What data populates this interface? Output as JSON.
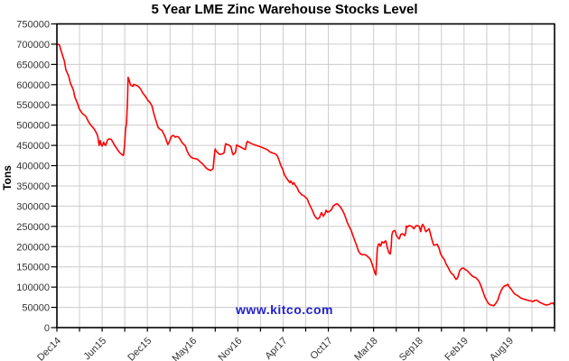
{
  "page": {
    "background": "#ffffff"
  },
  "chart_data": {
    "type": "line",
    "title": "5 Year LME Zinc Warehouse Stocks Level",
    "ylabel": "Tons",
    "watermark": "www.kitco.com",
    "grid": true,
    "legend": false,
    "ylim": [
      0,
      750000
    ],
    "y_tick_step": 50000,
    "y_tick_labels": [
      "750000",
      "700000",
      "650000",
      "600000",
      "550000",
      "500000",
      "450000",
      "400000",
      "350000",
      "300000",
      "250000",
      "200000",
      "150000",
      "100000",
      "50000",
      "0"
    ],
    "x_tick_labels": [
      "Dec14",
      "Jun15",
      "Dec15",
      "May16",
      "Nov16",
      "Apr17",
      "Oct17",
      "Mar18",
      "Sep18",
      "Feb19",
      "Aug19"
    ],
    "colors": {
      "line": "#ff0000",
      "grid": "#cccccc",
      "frame": "#000000",
      "watermark": "#2222cc",
      "tick_text": "#333333",
      "title_text": "#000000"
    },
    "series": [
      {
        "name": "LME Zinc Warehouse Stocks",
        "unit": "tons",
        "points": [
          [
            0.002,
            700000
          ],
          [
            0.005,
            698000
          ],
          [
            0.009,
            681000
          ],
          [
            0.015,
            658000
          ],
          [
            0.018,
            637000
          ],
          [
            0.024,
            620000
          ],
          [
            0.027,
            604000
          ],
          [
            0.033,
            587000
          ],
          [
            0.036,
            570000
          ],
          [
            0.042,
            552000
          ],
          [
            0.045,
            540000
          ],
          [
            0.051,
            529000
          ],
          [
            0.058,
            522000
          ],
          [
            0.064,
            507000
          ],
          [
            0.069,
            499000
          ],
          [
            0.074,
            492000
          ],
          [
            0.078,
            484000
          ],
          [
            0.082,
            473000
          ],
          [
            0.084,
            456000
          ],
          [
            0.085,
            450000
          ],
          [
            0.087,
            462000
          ],
          [
            0.089,
            452000
          ],
          [
            0.091,
            448000
          ],
          [
            0.094,
            458000
          ],
          [
            0.096,
            452000
          ],
          [
            0.098,
            450000
          ],
          [
            0.102,
            464000
          ],
          [
            0.105,
            466000
          ],
          [
            0.109,
            465000
          ],
          [
            0.113,
            457000
          ],
          [
            0.116,
            450000
          ],
          [
            0.12,
            443000
          ],
          [
            0.123,
            437000
          ],
          [
            0.127,
            431000
          ],
          [
            0.131,
            427000
          ],
          [
            0.133,
            425000
          ],
          [
            0.134,
            427000
          ],
          [
            0.136,
            450000
          ],
          [
            0.138,
            490000
          ],
          [
            0.14,
            505000
          ],
          [
            0.142,
            560000
          ],
          [
            0.143,
            618000
          ],
          [
            0.145,
            612000
          ],
          [
            0.147,
            603000
          ],
          [
            0.149,
            598000
          ],
          [
            0.153,
            596000
          ],
          [
            0.154,
            601000
          ],
          [
            0.158,
            599000
          ],
          [
            0.162,
            597000
          ],
          [
            0.165,
            594000
          ],
          [
            0.169,
            588000
          ],
          [
            0.172,
            580000
          ],
          [
            0.176,
            574000
          ],
          [
            0.18,
            567000
          ],
          [
            0.183,
            561000
          ],
          [
            0.187,
            556000
          ],
          [
            0.191,
            548000
          ],
          [
            0.194,
            532000
          ],
          [
            0.198,
            515000
          ],
          [
            0.2,
            508000
          ],
          [
            0.203,
            495000
          ],
          [
            0.207,
            490000
          ],
          [
            0.211,
            487000
          ],
          [
            0.214,
            480000
          ],
          [
            0.218,
            470000
          ],
          [
            0.22,
            462000
          ],
          [
            0.223,
            452000
          ],
          [
            0.227,
            462000
          ],
          [
            0.23,
            472000
          ],
          [
            0.234,
            475000
          ],
          [
            0.238,
            470000
          ],
          [
            0.241,
            472000
          ],
          [
            0.245,
            470000
          ],
          [
            0.249,
            462000
          ],
          [
            0.252,
            456000
          ],
          [
            0.258,
            449000
          ],
          [
            0.261,
            438000
          ],
          [
            0.265,
            428000
          ],
          [
            0.269,
            422000
          ],
          [
            0.272,
            419000
          ],
          [
            0.278,
            417000
          ],
          [
            0.281,
            417000
          ],
          [
            0.285,
            413000
          ],
          [
            0.289,
            408000
          ],
          [
            0.294,
            403000
          ],
          [
            0.298,
            397000
          ],
          [
            0.301,
            393000
          ],
          [
            0.305,
            390000
          ],
          [
            0.309,
            388000
          ],
          [
            0.312,
            391000
          ],
          [
            0.314,
            393000
          ],
          [
            0.316,
            420000
          ],
          [
            0.318,
            441000
          ],
          [
            0.319,
            438000
          ],
          [
            0.323,
            432000
          ],
          [
            0.327,
            428000
          ],
          [
            0.33,
            428000
          ],
          [
            0.334,
            430000
          ],
          [
            0.336,
            432000
          ],
          [
            0.338,
            447000
          ],
          [
            0.339,
            454000
          ],
          [
            0.343,
            452000
          ],
          [
            0.347,
            450000
          ],
          [
            0.35,
            446000
          ],
          [
            0.352,
            434000
          ],
          [
            0.354,
            427000
          ],
          [
            0.356,
            429000
          ],
          [
            0.359,
            433000
          ],
          [
            0.361,
            451000
          ],
          [
            0.363,
            450000
          ],
          [
            0.367,
            447000
          ],
          [
            0.372,
            444000
          ],
          [
            0.376,
            441000
          ],
          [
            0.379,
            440000
          ],
          [
            0.381,
            455000
          ],
          [
            0.383,
            460000
          ],
          [
            0.387,
            457000
          ],
          [
            0.392,
            454000
          ],
          [
            0.398,
            451000
          ],
          [
            0.403,
            449000
          ],
          [
            0.41,
            446000
          ],
          [
            0.416,
            443000
          ],
          [
            0.423,
            439000
          ],
          [
            0.428,
            434000
          ],
          [
            0.434,
            431000
          ],
          [
            0.439,
            429000
          ],
          [
            0.443,
            424000
          ],
          [
            0.446,
            415000
          ],
          [
            0.45,
            400000
          ],
          [
            0.454,
            390000
          ],
          [
            0.457,
            378000
          ],
          [
            0.461,
            370000
          ],
          [
            0.465,
            363000
          ],
          [
            0.468,
            358000
          ],
          [
            0.47,
            362000
          ],
          [
            0.474,
            354000
          ],
          [
            0.476,
            358000
          ],
          [
            0.479,
            352000
          ],
          [
            0.483,
            345000
          ],
          [
            0.486,
            336000
          ],
          [
            0.492,
            328000
          ],
          [
            0.497,
            325000
          ],
          [
            0.503,
            318000
          ],
          [
            0.506,
            308000
          ],
          [
            0.51,
            298000
          ],
          [
            0.514,
            288000
          ],
          [
            0.517,
            278000
          ],
          [
            0.521,
            271000
          ],
          [
            0.524,
            268000
          ],
          [
            0.528,
            272000
          ],
          [
            0.53,
            280000
          ],
          [
            0.532,
            284000
          ],
          [
            0.535,
            275000
          ],
          [
            0.539,
            282000
          ],
          [
            0.541,
            290000
          ],
          [
            0.544,
            285000
          ],
          [
            0.548,
            287000
          ],
          [
            0.552,
            292000
          ],
          [
            0.555,
            300000
          ],
          [
            0.559,
            304000
          ],
          [
            0.563,
            306000
          ],
          [
            0.566,
            303000
          ],
          [
            0.57,
            297000
          ],
          [
            0.574,
            289000
          ],
          [
            0.577,
            282000
          ],
          [
            0.581,
            269000
          ],
          [
            0.584,
            258000
          ],
          [
            0.588,
            248000
          ],
          [
            0.592,
            238000
          ],
          [
            0.595,
            227000
          ],
          [
            0.599,
            214000
          ],
          [
            0.603,
            200000
          ],
          [
            0.606,
            189000
          ],
          [
            0.61,
            182000
          ],
          [
            0.613,
            180000
          ],
          [
            0.619,
            180000
          ],
          [
            0.622,
            178000
          ],
          [
            0.626,
            174000
          ],
          [
            0.63,
            169000
          ],
          [
            0.633,
            158000
          ],
          [
            0.637,
            143000
          ],
          [
            0.639,
            135000
          ],
          [
            0.641,
            130000
          ],
          [
            0.642,
            152000
          ],
          [
            0.644,
            196000
          ],
          [
            0.646,
            205000
          ],
          [
            0.648,
            207000
          ],
          [
            0.65,
            201000
          ],
          [
            0.652,
            206000
          ],
          [
            0.653,
            212000
          ],
          [
            0.657,
            209000
          ],
          [
            0.659,
            213000
          ],
          [
            0.661,
            214000
          ],
          [
            0.662,
            208000
          ],
          [
            0.664,
            197000
          ],
          [
            0.666,
            189000
          ],
          [
            0.668,
            183000
          ],
          [
            0.67,
            182000
          ],
          [
            0.672,
            205000
          ],
          [
            0.673,
            228000
          ],
          [
            0.675,
            237000
          ],
          [
            0.677,
            239000
          ],
          [
            0.679,
            240000
          ],
          [
            0.681,
            234000
          ],
          [
            0.682,
            228000
          ],
          [
            0.686,
            221000
          ],
          [
            0.688,
            219000
          ],
          [
            0.691,
            230000
          ],
          [
            0.695,
            232000
          ],
          [
            0.699,
            227000
          ],
          [
            0.701,
            235000
          ],
          [
            0.702,
            251000
          ],
          [
            0.704,
            248000
          ],
          [
            0.708,
            252000
          ],
          [
            0.711,
            251000
          ],
          [
            0.715,
            248000
          ],
          [
            0.717,
            244000
          ],
          [
            0.719,
            247000
          ],
          [
            0.721,
            251000
          ],
          [
            0.724,
            252000
          ],
          [
            0.728,
            250000
          ],
          [
            0.73,
            242000
          ],
          [
            0.731,
            237000
          ],
          [
            0.733,
            250000
          ],
          [
            0.735,
            255000
          ],
          [
            0.739,
            246000
          ],
          [
            0.74,
            240000
          ],
          [
            0.742,
            237000
          ],
          [
            0.746,
            242000
          ],
          [
            0.748,
            244000
          ],
          [
            0.751,
            230000
          ],
          [
            0.753,
            220000
          ],
          [
            0.757,
            204000
          ],
          [
            0.76,
            204000
          ],
          [
            0.764,
            206000
          ],
          [
            0.768,
            196000
          ],
          [
            0.771,
            182000
          ],
          [
            0.775,
            174000
          ],
          [
            0.779,
            167000
          ],
          [
            0.782,
            157000
          ],
          [
            0.786,
            149000
          ],
          [
            0.789,
            141000
          ],
          [
            0.793,
            134000
          ],
          [
            0.797,
            130000
          ],
          [
            0.799,
            125000
          ],
          [
            0.802,
            119000
          ],
          [
            0.804,
            121000
          ],
          [
            0.806,
            125000
          ],
          [
            0.809,
            140000
          ],
          [
            0.813,
            146000
          ],
          [
            0.817,
            147000
          ],
          [
            0.82,
            144000
          ],
          [
            0.824,
            141000
          ],
          [
            0.828,
            136000
          ],
          [
            0.831,
            132000
          ],
          [
            0.835,
            127000
          ],
          [
            0.838,
            125000
          ],
          [
            0.842,
            123000
          ],
          [
            0.846,
            118000
          ],
          [
            0.849,
            112000
          ],
          [
            0.853,
            100000
          ],
          [
            0.857,
            86000
          ],
          [
            0.86,
            75000
          ],
          [
            0.864,
            66000
          ],
          [
            0.867,
            60000
          ],
          [
            0.871,
            56000
          ],
          [
            0.875,
            55000
          ],
          [
            0.878,
            54000
          ],
          [
            0.882,
            60000
          ],
          [
            0.886,
            68000
          ],
          [
            0.889,
            80000
          ],
          [
            0.893,
            92000
          ],
          [
            0.897,
            100000
          ],
          [
            0.9,
            103000
          ],
          [
            0.904,
            105000
          ],
          [
            0.906,
            107000
          ],
          [
            0.909,
            100000
          ],
          [
            0.913,
            95000
          ],
          [
            0.916,
            89000
          ],
          [
            0.92,
            83000
          ],
          [
            0.926,
            79000
          ],
          [
            0.931,
            74000
          ],
          [
            0.936,
            71000
          ],
          [
            0.942,
            69000
          ],
          [
            0.947,
            67000
          ],
          [
            0.953,
            66000
          ],
          [
            0.956,
            64000
          ],
          [
            0.96,
            67000
          ],
          [
            0.964,
            68000
          ],
          [
            0.967,
            65000
          ],
          [
            0.971,
            62000
          ],
          [
            0.975,
            60000
          ],
          [
            0.978,
            58000
          ],
          [
            0.982,
            56000
          ],
          [
            0.985,
            56000
          ],
          [
            0.989,
            57000
          ],
          [
            0.993,
            60000
          ],
          [
            0.996,
            61000
          ],
          [
            1.0,
            56000
          ]
        ]
      }
    ]
  }
}
